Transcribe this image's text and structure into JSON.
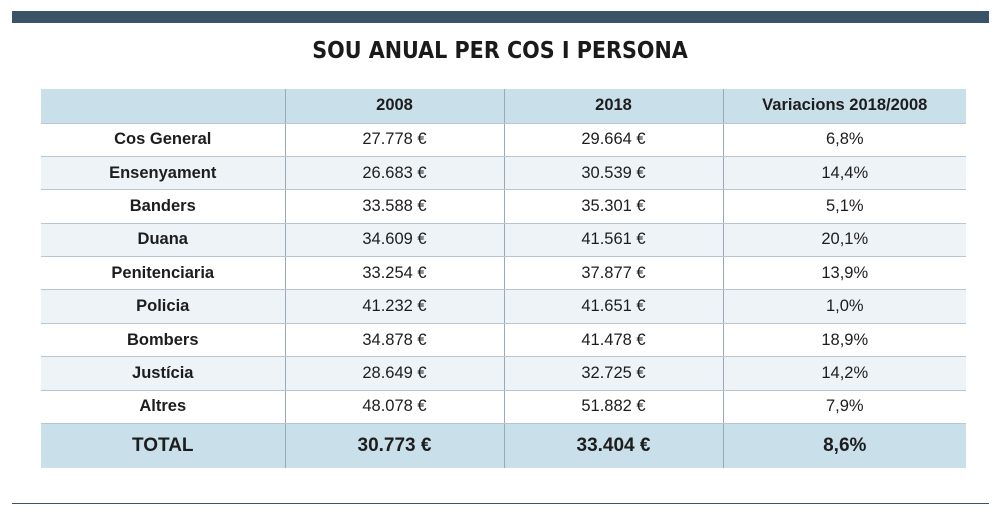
{
  "title": "SOU ANUAL PER COS I PERSONA",
  "colors": {
    "bar": "#3a5366",
    "header_bg": "#c9dfea",
    "stripe_bg": "#edf3f7"
  },
  "chart_data": {
    "type": "table",
    "title": "SOU ANUAL PER COS I PERSONA",
    "columns": [
      "",
      "2008",
      "2018",
      "Variacions 2018/2008"
    ],
    "rows": [
      [
        "Cos General",
        "27.778 €",
        "29.664 €",
        "6,8%"
      ],
      [
        "Ensenyament",
        "26.683 €",
        "30.539 €",
        "14,4%"
      ],
      [
        "Banders",
        "33.588 €",
        "35.301 €",
        "5,1%"
      ],
      [
        "Duana",
        "34.609 €",
        "41.561 €",
        "20,1%"
      ],
      [
        "Penitenciaria",
        "33.254 €",
        "37.877 €",
        "13,9%"
      ],
      [
        "Policia",
        "41.232 €",
        "41.651 €",
        "1,0%"
      ],
      [
        "Bombers",
        "34.878 €",
        "41.478 €",
        "18,9%"
      ],
      [
        "Justícia",
        "28.649 €",
        "32.725 €",
        "14,2%"
      ],
      [
        "Altres",
        "48.078 €",
        "51.882 €",
        "7,9%"
      ]
    ],
    "total": [
      "TOTAL",
      "30.773 €",
      "33.404 €",
      "8,6%"
    ]
  }
}
